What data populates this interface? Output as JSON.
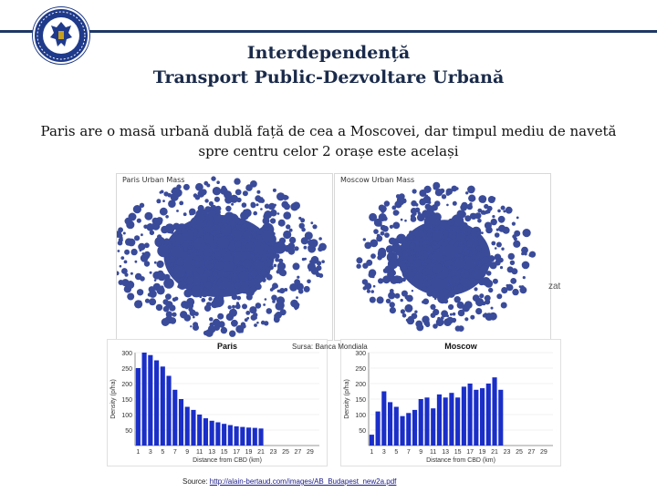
{
  "header": {
    "title_line1": "Interdependență",
    "title_line2": "Transport Public-Dezvoltare Urbană",
    "logo_icon": "romanian-government-emblem-icon",
    "accent_color": "#1f3864"
  },
  "subtitle": "Paris are o masă urbană dublă față de cea a Moscovei, dar timpul mediu de navetă spre centru celor 2 orașe este același",
  "maps": {
    "paris_label": "Paris Urban Mass",
    "moscow_label": "Moscow Urban Mass",
    "fill_color": "#3a4b9a"
  },
  "overlay_text": "zat",
  "sursa": "Sursa: Banca Mondiala",
  "source": {
    "prefix": "Source: ",
    "link": "http://alain-bertaud.com/images/AB_Budapest_new2a.pdf"
  },
  "chart_data": [
    {
      "type": "bar",
      "title": "Paris",
      "xlabel": "Distance from CBD (km)",
      "ylabel": "Density (p/ha)",
      "ylim": [
        0,
        300
      ],
      "yticks": [
        50,
        100,
        150,
        200,
        250,
        300
      ],
      "xticks": [
        1,
        3,
        5,
        7,
        9,
        11,
        13,
        15,
        17,
        19,
        21,
        23,
        25,
        27,
        29
      ],
      "x": [
        1,
        2,
        3,
        4,
        5,
        6,
        7,
        8,
        9,
        10,
        11,
        12,
        13,
        14,
        15,
        16,
        17,
        18,
        19,
        20,
        21,
        22,
        23,
        24,
        25,
        26,
        27,
        28,
        29,
        30
      ],
      "values": [
        250,
        300,
        292,
        275,
        255,
        225,
        180,
        150,
        125,
        115,
        100,
        88,
        80,
        75,
        70,
        66,
        62,
        60,
        58,
        57,
        55,
        0,
        0,
        0,
        0,
        0,
        0,
        0,
        0,
        0
      ],
      "color": "#1a2ec8"
    },
    {
      "type": "bar",
      "title": "Moscow",
      "xlabel": "Distance from CBD (km)",
      "ylabel": "Density (p/ha)",
      "ylim": [
        0,
        300
      ],
      "yticks": [
        50,
        100,
        150,
        200,
        250,
        300
      ],
      "xticks": [
        1,
        3,
        5,
        7,
        9,
        11,
        13,
        15,
        17,
        19,
        21,
        23,
        25,
        27,
        29
      ],
      "x": [
        1,
        2,
        3,
        4,
        5,
        6,
        7,
        8,
        9,
        10,
        11,
        12,
        13,
        14,
        15,
        16,
        17,
        18,
        19,
        20,
        21,
        22,
        23,
        24,
        25,
        26,
        27,
        28,
        29,
        30
      ],
      "values": [
        35,
        110,
        175,
        140,
        125,
        95,
        105,
        115,
        150,
        155,
        120,
        165,
        155,
        170,
        155,
        190,
        200,
        180,
        185,
        200,
        220,
        180,
        0,
        0,
        0,
        0,
        0,
        0,
        0,
        0
      ],
      "color": "#1a2ec8"
    }
  ]
}
